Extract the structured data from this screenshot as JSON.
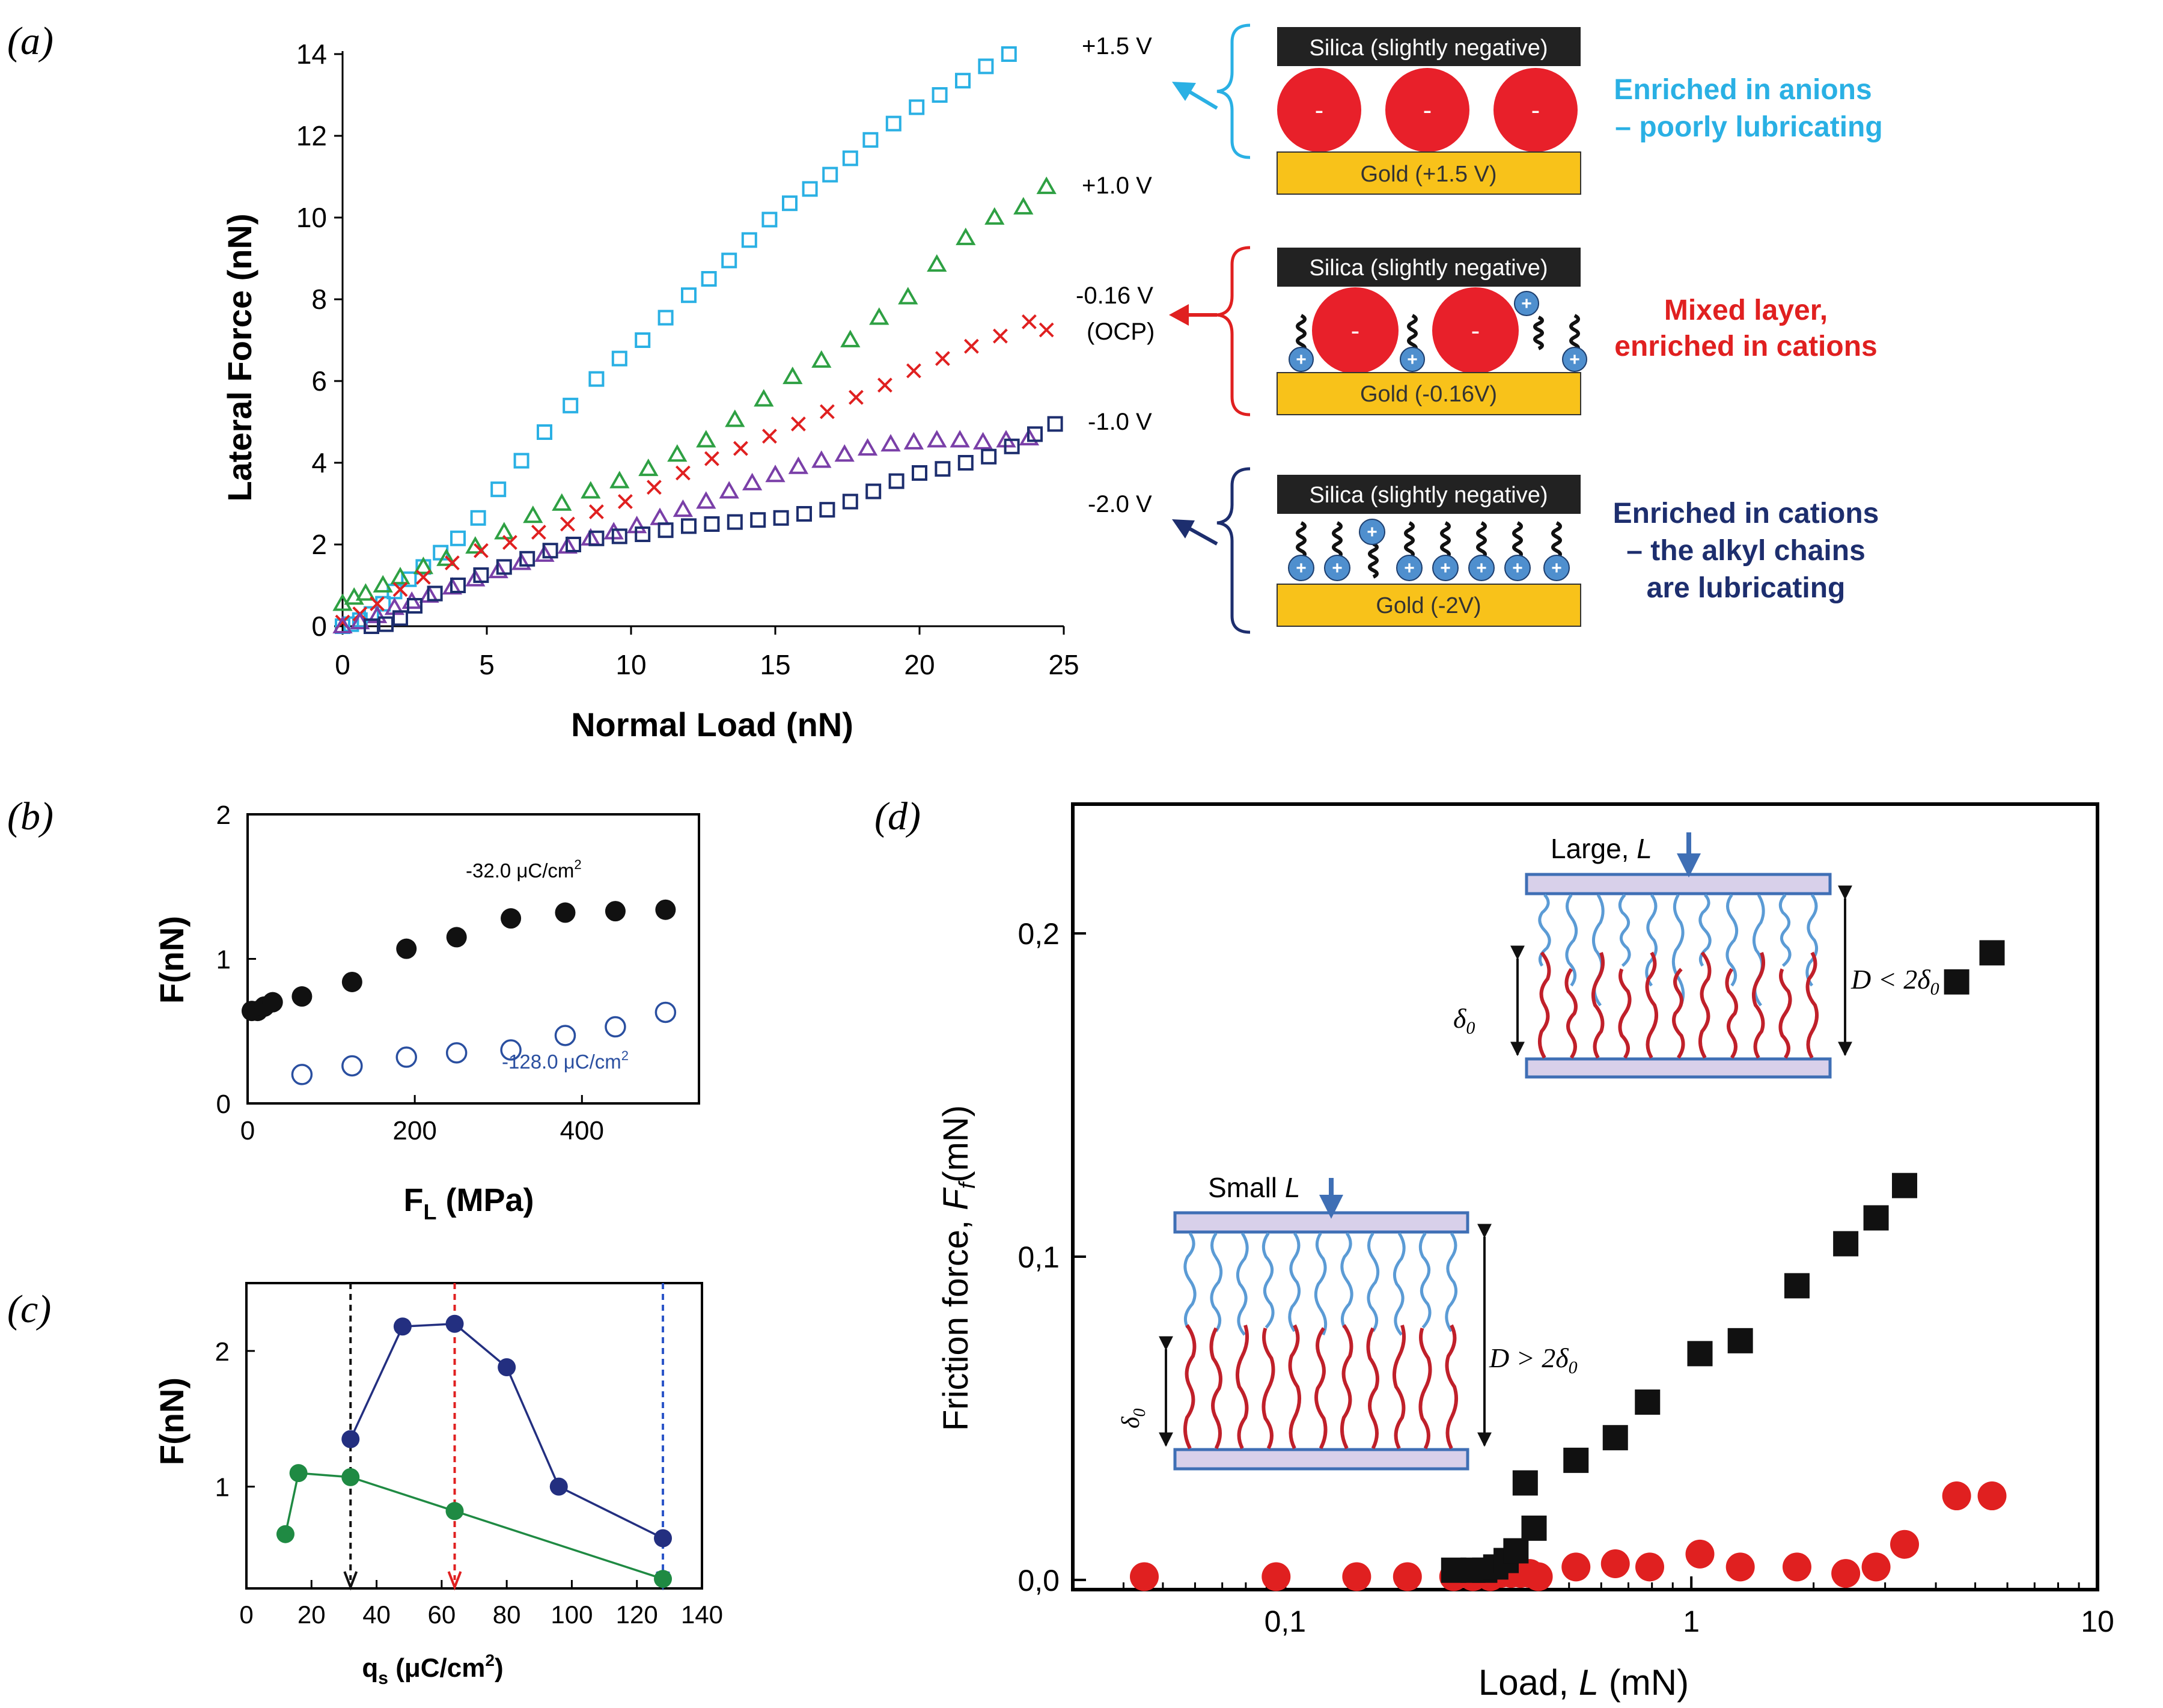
{
  "panel_labels": {
    "a": "(a)",
    "b": "(b)",
    "c": "(c)",
    "d": "(d)"
  },
  "colors": {
    "light_blue": "#2ab0e4",
    "green": "#2ea043",
    "red": "#e02020",
    "purple": "#7a3fa8",
    "navy": "#1d2e6e",
    "black": "#111111",
    "dark_blue": "#232f80",
    "mid_green": "#1f8a43",
    "silica_bg": "#222222",
    "gold": "#f8c21a",
    "ion_red": "#e8202a",
    "cation_blue": "#4f8fce",
    "chain_blue": "#5b9bd5",
    "chain_red": "#c0202a",
    "plate_fill": "#d8d0ea",
    "plate_edge": "#3f6fb5",
    "arrow_c_blue": "#2b55c8"
  },
  "chart_data": [
    {
      "id": "a",
      "type": "scatter",
      "xlabel": "Normal Load (nN)",
      "ylabel": "Lateral Force (nN)",
      "xlim": [
        0,
        25
      ],
      "ylim": [
        0,
        14
      ],
      "xticks": [
        "0",
        "5",
        "10",
        "15",
        "20",
        "25"
      ],
      "yticks": [
        "0",
        "2",
        "4",
        "6",
        "8",
        "10",
        "12",
        "14"
      ],
      "series": [
        {
          "name": "+1.5 V",
          "marker": "square",
          "color": "#2ab0e4",
          "x": [
            0,
            0.3,
            0.6,
            1.0,
            1.4,
            1.8,
            2.3,
            2.8,
            3.4,
            4.0,
            4.7,
            5.4,
            6.2,
            7.0,
            7.9,
            8.8,
            9.6,
            10.4,
            11.2,
            12.0,
            12.7,
            13.4,
            14.1,
            14.8,
            15.5,
            16.2,
            16.9,
            17.6,
            18.3,
            19.1,
            19.9,
            20.7,
            21.5,
            22.3,
            23.1
          ],
          "y": [
            0,
            0.05,
            0.15,
            0.3,
            0.55,
            0.85,
            1.15,
            1.45,
            1.8,
            2.15,
            2.65,
            3.35,
            4.05,
            4.75,
            5.4,
            6.05,
            6.55,
            7.0,
            7.55,
            8.1,
            8.5,
            8.95,
            9.45,
            9.95,
            10.35,
            10.7,
            11.05,
            11.45,
            11.9,
            12.3,
            12.7,
            13.0,
            13.35,
            13.7,
            14.0
          ]
        },
        {
          "name": "+1.0 V",
          "marker": "triangle",
          "color": "#2ea043",
          "x": [
            0,
            0.4,
            0.8,
            1.4,
            2.0,
            2.8,
            3.6,
            4.6,
            5.6,
            6.6,
            7.6,
            8.6,
            9.6,
            10.6,
            11.6,
            12.6,
            13.6,
            14.6,
            15.6,
            16.6,
            17.6,
            18.6,
            19.6,
            20.6,
            21.6,
            22.6,
            23.6,
            24.4
          ],
          "y": [
            0.55,
            0.7,
            0.8,
            1.0,
            1.2,
            1.45,
            1.65,
            1.95,
            2.3,
            2.7,
            3.0,
            3.3,
            3.55,
            3.85,
            4.2,
            4.55,
            5.05,
            5.55,
            6.1,
            6.5,
            7.0,
            7.55,
            8.05,
            8.85,
            9.5,
            10.0,
            10.25,
            10.75
          ]
        },
        {
          "name": "-0.16 V (OCP)",
          "marker": "x",
          "color": "#e02020",
          "x": [
            0,
            0.6,
            1.2,
            2.0,
            2.8,
            3.8,
            4.8,
            5.8,
            6.8,
            7.8,
            8.8,
            9.8,
            10.8,
            11.8,
            12.8,
            13.8,
            14.8,
            15.8,
            16.8,
            17.8,
            18.8,
            19.8,
            20.8,
            21.8,
            22.8,
            23.8,
            24.4
          ],
          "y": [
            0.1,
            0.3,
            0.55,
            0.9,
            1.2,
            1.55,
            1.85,
            2.05,
            2.3,
            2.5,
            2.8,
            3.05,
            3.4,
            3.75,
            4.1,
            4.35,
            4.65,
            4.95,
            5.25,
            5.6,
            5.9,
            6.25,
            6.55,
            6.85,
            7.1,
            7.45,
            7.25
          ]
        },
        {
          "name": "-1.0 V",
          "marker": "triangle",
          "color": "#7a3fa8",
          "x": [
            0,
            0.6,
            1.2,
            1.8,
            2.4,
            3.0,
            3.8,
            4.6,
            5.4,
            6.2,
            7.0,
            7.8,
            8.6,
            9.4,
            10.2,
            11.0,
            11.8,
            12.6,
            13.4,
            14.2,
            15.0,
            15.8,
            16.6,
            17.4,
            18.2,
            19.0,
            19.8,
            20.6,
            21.4,
            22.2,
            23.0,
            23.8
          ],
          "y": [
            0,
            0.1,
            0.25,
            0.45,
            0.6,
            0.75,
            0.95,
            1.15,
            1.35,
            1.55,
            1.75,
            1.95,
            2.15,
            2.3,
            2.45,
            2.65,
            2.85,
            3.05,
            3.3,
            3.5,
            3.7,
            3.9,
            4.05,
            4.2,
            4.35,
            4.45,
            4.5,
            4.55,
            4.55,
            4.5,
            4.55,
            4.6
          ]
        },
        {
          "name": "-2.0 V",
          "marker": "square",
          "color": "#1d2e6e",
          "x": [
            1.0,
            1.5,
            2.0,
            2.5,
            3.2,
            4.0,
            4.8,
            5.6,
            6.4,
            7.2,
            8.0,
            8.8,
            9.6,
            10.4,
            11.2,
            12.0,
            12.8,
            13.6,
            14.4,
            15.2,
            16.0,
            16.8,
            17.6,
            18.4,
            19.2,
            20.0,
            20.8,
            21.6,
            22.4,
            23.2,
            24.0,
            24.7
          ],
          "y": [
            0,
            0.05,
            0.2,
            0.5,
            0.8,
            1.0,
            1.25,
            1.45,
            1.65,
            1.85,
            2.0,
            2.15,
            2.2,
            2.25,
            2.35,
            2.45,
            2.5,
            2.55,
            2.6,
            2.65,
            2.75,
            2.85,
            3.05,
            3.3,
            3.55,
            3.75,
            3.85,
            4.0,
            4.15,
            4.4,
            4.7,
            4.95
          ]
        }
      ],
      "annotations": [
        "+1.5 V",
        "+1.0 V",
        "-0.16 V",
        "(OCP)",
        "-1.0 V",
        "-2.0 V"
      ]
    },
    {
      "id": "b",
      "type": "scatter",
      "xlabel": "F",
      "xlabel_sub": "L",
      "xlabel_tail": " (MPa)",
      "ylabel": "F(nN)",
      "xlim": [
        0,
        540
      ],
      "ylim": [
        0,
        2
      ],
      "xticks": [
        "0",
        "200",
        "400"
      ],
      "yticks": [
        "0",
        "1",
        "2"
      ],
      "series": [
        {
          "name": "-32.0 μC/cm²",
          "marker": "filled-circle",
          "color": "#111111",
          "x": [
            5,
            12,
            20,
            30,
            65,
            125,
            190,
            250,
            315,
            380,
            440,
            500
          ],
          "y": [
            0.64,
            0.64,
            0.67,
            0.7,
            0.74,
            0.84,
            1.07,
            1.15,
            1.28,
            1.32,
            1.33,
            1.34
          ]
        },
        {
          "name": "-128.0 μC/cm²",
          "marker": "open-circle",
          "color": "#2a4fa0",
          "x": [
            65,
            125,
            190,
            250,
            315,
            380,
            440,
            500
          ],
          "y": [
            0.2,
            0.26,
            0.32,
            0.35,
            0.37,
            0.47,
            0.53,
            0.63
          ]
        }
      ],
      "label_top": "-32.0 μC/cm",
      "label_bottom": "-128.0 μC/cm",
      "superscript": "2"
    },
    {
      "id": "c",
      "type": "line",
      "xlabel": "q",
      "xlabel_sub": "s",
      "xlabel_tail": " (μC/cm",
      "xlabel_sup": "2",
      "xlabel_end": ")",
      "ylabel": "F(nN)",
      "xlim": [
        0,
        140
      ],
      "ylim": [
        0.25,
        2.5
      ],
      "xticks": [
        "0",
        "20",
        "40",
        "60",
        "80",
        "100",
        "120",
        "140"
      ],
      "yticks": [
        "1",
        "2"
      ],
      "series": [
        {
          "name": "upper",
          "color": "#232f80",
          "x": [
            32,
            48,
            64,
            80,
            96,
            128
          ],
          "y": [
            1.35,
            2.18,
            2.2,
            1.88,
            1.0,
            0.62
          ]
        },
        {
          "name": "lower",
          "color": "#1f8a43",
          "x": [
            12,
            16,
            32,
            64,
            128
          ],
          "y": [
            0.65,
            1.1,
            1.07,
            0.82,
            0.32
          ]
        }
      ],
      "vlines": [
        {
          "x": 32,
          "color": "#111111"
        },
        {
          "x": 64,
          "color": "#e02020"
        },
        {
          "x": 128,
          "color": "#2b55c8"
        }
      ]
    },
    {
      "id": "d",
      "type": "scatter",
      "xlabel": "Load, ",
      "xlabel_italic": "L",
      "xlabel_tail": " (mN)",
      "ylabel": "Friction force, ",
      "ylabel_italic": "F",
      "ylabel_sub": "f",
      "ylabel_tail": "(mN)",
      "xscale": "log",
      "xlim": [
        0.03,
        10
      ],
      "ylim": [
        -0.003,
        0.24
      ],
      "xticks": [
        {
          "v": 0.1,
          "label": "0,1"
        },
        {
          "v": 1,
          "label": "1"
        },
        {
          "v": 10,
          "label": "10"
        }
      ],
      "yticks": [
        {
          "v": 0,
          "label": "0,0"
        },
        {
          "v": 0.1,
          "label": "0,1"
        },
        {
          "v": 0.2,
          "label": "0,2"
        }
      ],
      "series": [
        {
          "name": "squares",
          "marker": "filled-square",
          "color": "#111111",
          "x": [
            0.26,
            0.29,
            0.31,
            0.33,
            0.35,
            0.37,
            0.39,
            0.41,
            0.52,
            0.65,
            0.78,
            1.05,
            1.32,
            1.82,
            2.4,
            2.85,
            3.35,
            4.5,
            5.5
          ],
          "y": [
            0.003,
            0.003,
            0.003,
            0.004,
            0.006,
            0.009,
            0.03,
            0.016,
            0.037,
            0.044,
            0.055,
            0.07,
            0.074,
            0.091,
            0.104,
            0.112,
            0.122,
            0.185,
            0.194
          ]
        },
        {
          "name": "circles",
          "marker": "filled-circle",
          "color": "#e02020",
          "x": [
            0.045,
            0.095,
            0.15,
            0.2,
            0.26,
            0.29,
            0.32,
            0.34,
            0.36,
            0.38,
            0.4,
            0.42,
            0.52,
            0.65,
            0.79,
            1.05,
            1.32,
            1.82,
            2.4,
            2.85,
            3.35,
            4.5,
            5.5
          ],
          "y": [
            0.001,
            0.001,
            0.001,
            0.001,
            0.001,
            0.001,
            0.001,
            0.002,
            0.002,
            0.002,
            0.002,
            0.001,
            0.004,
            0.005,
            0.004,
            0.008,
            0.004,
            0.004,
            0.002,
            0.004,
            0.011,
            0.026,
            0.026
          ]
        }
      ]
    }
  ],
  "schematics_a": {
    "silica": "Silica (slightly negative)",
    "gold_1": "Gold (+1.5 V)",
    "gold_2": "Gold (-0.16V)",
    "gold_3": "Gold (-2V)",
    "minus": "-",
    "plus": "+",
    "desc_1_line1": "Enriched in anions",
    "desc_1_line2": "– poorly lubricating",
    "desc_2_line1": "Mixed layer,",
    "desc_2_line2": "enriched in cations",
    "desc_3_line1": "Enriched in cations",
    "desc_3_line2": "– the alkyl chains",
    "desc_3_line3": "are lubricating"
  },
  "schematics_d": {
    "large_label": "Large, ",
    "large_italic": "L",
    "small_label": "Small ",
    "small_italic": "L",
    "delta": "δ",
    "delta_sub": "0",
    "d_less": "D < 2",
    "d_greater": "D > 2"
  }
}
